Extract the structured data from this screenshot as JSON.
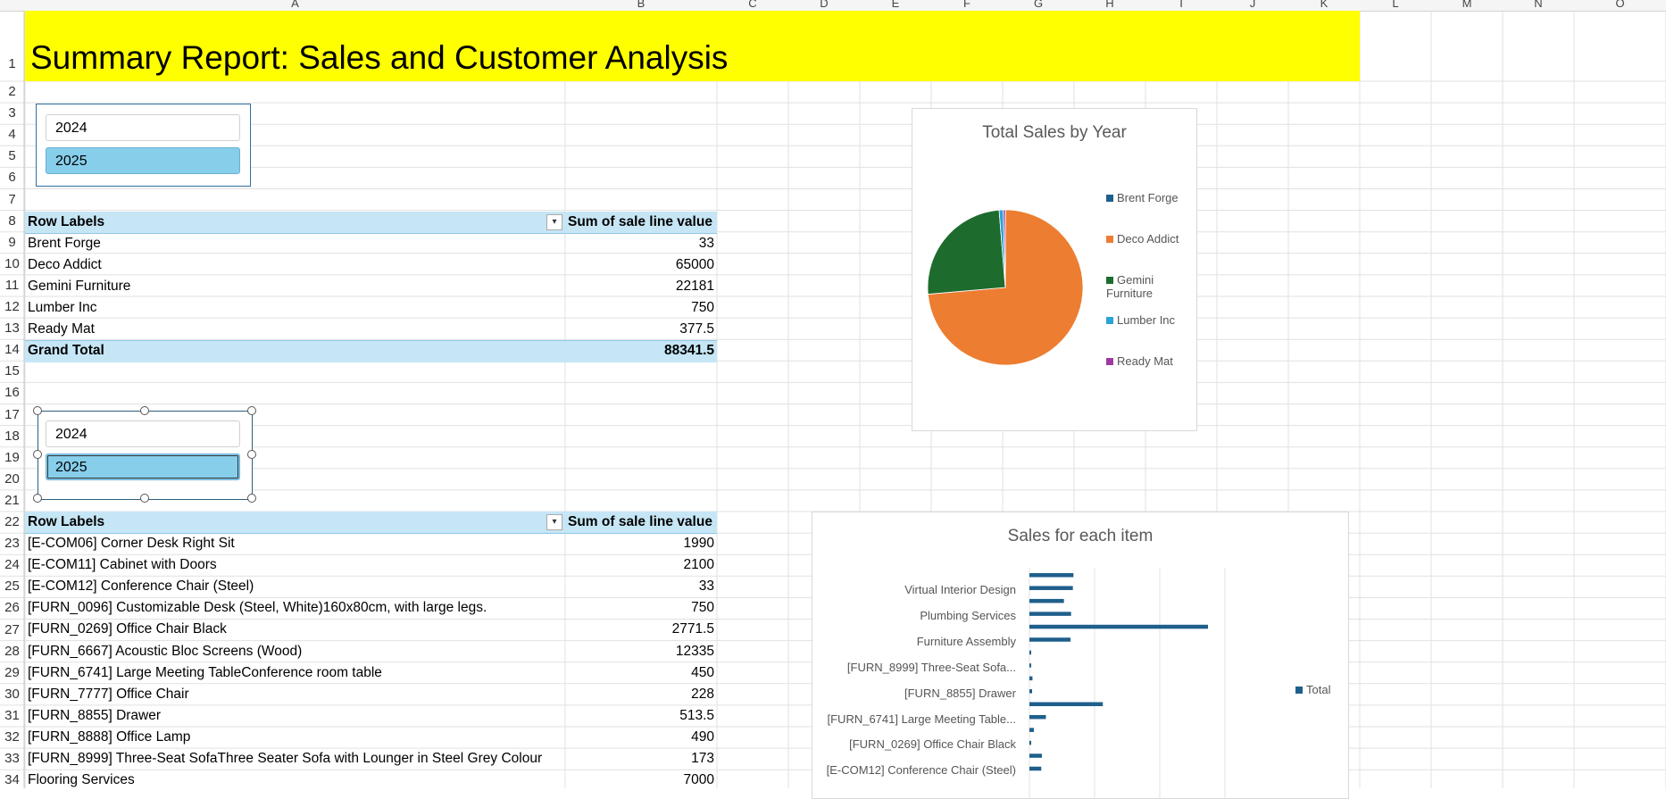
{
  "columns": [
    "A",
    "B",
    "C",
    "D",
    "E",
    "F",
    "G",
    "H",
    "I",
    "J",
    "K",
    "L",
    "M",
    "N",
    "O"
  ],
  "rows": [
    "1",
    "2",
    "3",
    "4",
    "5",
    "6",
    "7",
    "8",
    "9",
    "10",
    "11",
    "12",
    "13",
    "14",
    "15",
    "16",
    "17",
    "18",
    "19",
    "20",
    "21",
    "22",
    "23",
    "24",
    "25",
    "26",
    "27",
    "28",
    "29",
    "30",
    "31",
    "32",
    "33",
    "34"
  ],
  "title": "Summary Report:   Sales and Customer Analysis",
  "slicer1": {
    "items": [
      "2024",
      "2025"
    ],
    "selected": "2025"
  },
  "slicer2": {
    "items": [
      "2024",
      "2025"
    ],
    "selected": "2025"
  },
  "pivot1": {
    "header_label": "Row Labels",
    "header_value": "Sum of sale line value",
    "rows": [
      {
        "label": "Brent Forge",
        "value": "33"
      },
      {
        "label": "Deco Addict",
        "value": "65000"
      },
      {
        "label": "Gemini Furniture",
        "value": "22181"
      },
      {
        "label": "Lumber Inc",
        "value": "750"
      },
      {
        "label": "Ready Mat",
        "value": "377.5"
      }
    ],
    "total_label": "Grand Total",
    "total_value": "88341.5"
  },
  "pivot2": {
    "header_label": "Row Labels",
    "header_value": "Sum of sale line value",
    "rows": [
      {
        "label": "[E-COM06] Corner Desk Right Sit",
        "value": "1990"
      },
      {
        "label": "[E-COM11] Cabinet with Doors",
        "value": "2100"
      },
      {
        "label": "[E-COM12] Conference Chair (Steel)",
        "value": "33"
      },
      {
        "label": "[FURN_0096] Customizable Desk (Steel, White)160x80cm, with large legs.",
        "value": "750"
      },
      {
        "label": "[FURN_0269] Office Chair Black",
        "value": "2771.5"
      },
      {
        "label": "[FURN_6667] Acoustic Bloc Screens (Wood)",
        "value": "12335"
      },
      {
        "label": "[FURN_6741] Large Meeting TableConference room table",
        "value": "450"
      },
      {
        "label": "[FURN_7777] Office Chair",
        "value": "228"
      },
      {
        "label": "[FURN_8855] Drawer",
        "value": "513.5"
      },
      {
        "label": "[FURN_8888] Office Lamp",
        "value": "490"
      },
      {
        "label": "[FURN_8999] Three-Seat SofaThree Seater Sofa with Lounger in Steel Grey Colour",
        "value": "173"
      },
      {
        "label": "Flooring Services",
        "value": "7000"
      }
    ]
  },
  "chart_data": [
    {
      "type": "pie",
      "title": "Total Sales by Year",
      "categories": [
        "Brent Forge",
        "Deco Addict",
        "Gemini Furniture",
        "Lumber Inc",
        "Ready Mat"
      ],
      "values": [
        33,
        65000,
        22181,
        750,
        377.5
      ],
      "colors": [
        "#1f5f8b",
        "#ed7d31",
        "#1e6b2e",
        "#2aa3d6",
        "#a03aa0"
      ],
      "legend": "right"
    },
    {
      "type": "bar",
      "orientation": "horizontal",
      "title": "Sales for each item",
      "visible_category_labels": [
        "Virtual Interior Design",
        "Plumbing Services",
        "Furniture Assembly",
        "[FURN_8999] Three-Seat Sofa...",
        "[FURN_8855] Drawer",
        "[FURN_6741] Large Meeting Table...",
        "[FURN_0269] Office Chair Black",
        "[E-COM12] Conference Chair (Steel)"
      ],
      "values": [
        7400,
        7300,
        5800,
        7000,
        30000,
        6900,
        173,
        228,
        513.5,
        450,
        12335,
        2771.5,
        750,
        33,
        2100,
        1990
      ],
      "series": [
        {
          "name": "Total"
        }
      ],
      "color": "#1f5f8b",
      "legend": "right"
    }
  ]
}
